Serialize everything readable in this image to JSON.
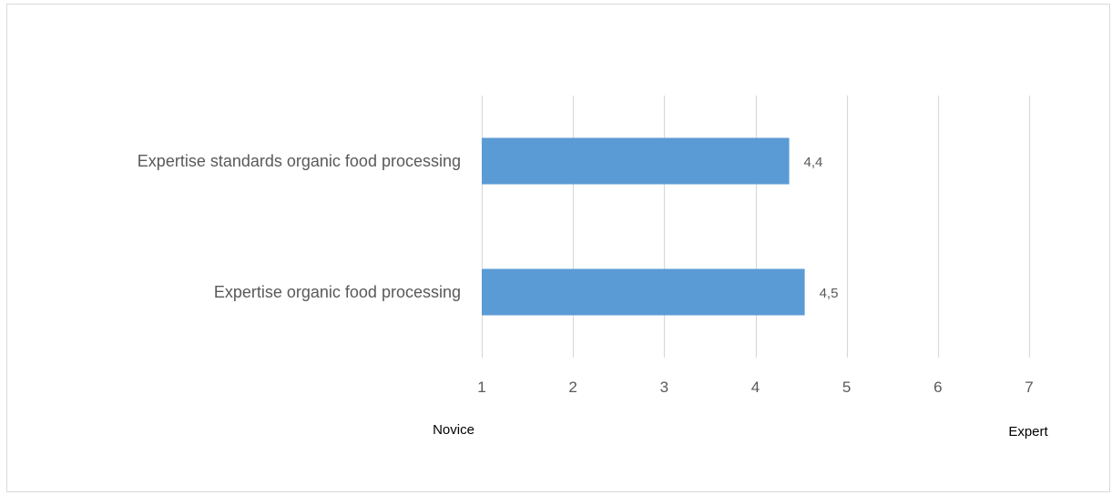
{
  "chart_data": {
    "type": "bar",
    "orientation": "horizontal",
    "title": "",
    "categories": [
      "Expertise standards organic food processing",
      "Expertise organic food processing"
    ],
    "values": [
      4.37,
      4.54
    ],
    "data_labels": [
      "4,4",
      "4,5"
    ],
    "x_ticks": [
      1,
      2,
      3,
      4,
      5,
      6,
      7
    ],
    "x_tick_labels": [
      "1",
      "2",
      "3",
      "4",
      "5",
      "6",
      "7"
    ],
    "xlim": [
      1,
      7
    ],
    "x_endpoint_labels": {
      "left": "Novice",
      "right": "Expert"
    },
    "grid": "vertical",
    "legend": "none",
    "colors": {
      "bar": "#5b9bd5",
      "grid": "#d9d9d9",
      "text": "#595959",
      "endpoint_text": "#000000",
      "frame": "#d9d9d9"
    }
  }
}
